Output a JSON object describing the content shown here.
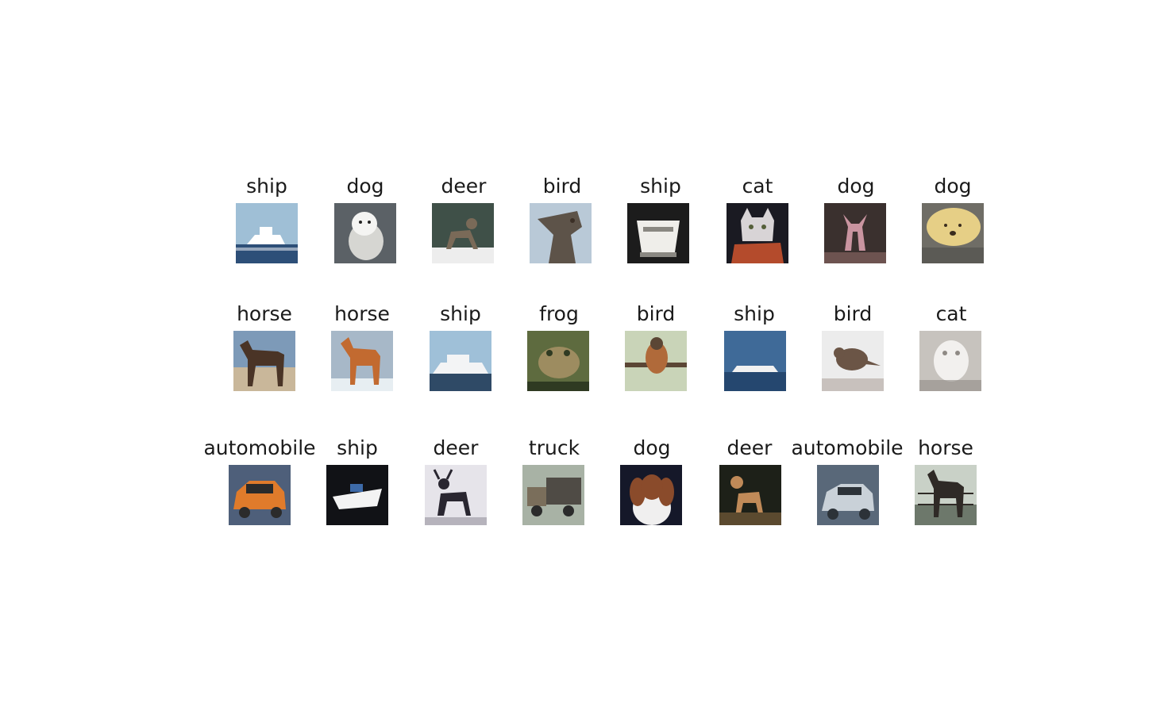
{
  "rows": [
    [
      {
        "label": "ship",
        "icon": "ship-photo",
        "palette": [
          "#9fbfd6",
          "#ffffff",
          "#2d4f78"
        ]
      },
      {
        "label": "dog",
        "icon": "dog-photo",
        "palette": [
          "#5b6166",
          "#f4f4f2",
          "#d6d6d2"
        ]
      },
      {
        "label": "deer",
        "icon": "deer-photo",
        "palette": [
          "#3f5048",
          "#7a6a58",
          "#ededed"
        ]
      },
      {
        "label": "bird",
        "icon": "bird-photo",
        "palette": [
          "#b9c9d7",
          "#5d5349",
          "#3b2f26"
        ]
      },
      {
        "label": "ship",
        "icon": "ship-photo",
        "palette": [
          "#1c1c1c",
          "#efeeea",
          "#8a8882"
        ]
      },
      {
        "label": "cat",
        "icon": "cat-photo",
        "palette": [
          "#1a1a22",
          "#d8d4d6",
          "#b44b2c"
        ]
      },
      {
        "label": "dog",
        "icon": "dog-photo",
        "palette": [
          "#3a302e",
          "#c994a0",
          "#6d5350"
        ]
      },
      {
        "label": "dog",
        "icon": "dog-photo",
        "palette": [
          "#6f6d66",
          "#e6cf86",
          "#3a2c1e"
        ]
      }
    ],
    [
      {
        "label": "horse",
        "icon": "horse-photo",
        "palette": [
          "#7d9ab8",
          "#4a3426",
          "#c9b79a"
        ]
      },
      {
        "label": "horse",
        "icon": "horse-photo",
        "palette": [
          "#a7b8c8",
          "#c26a30",
          "#e7eef2"
        ]
      },
      {
        "label": "ship",
        "icon": "ship-photo",
        "palette": [
          "#9fc0d8",
          "#f3f4f5",
          "#2f4a66"
        ]
      },
      {
        "label": "frog",
        "icon": "frog-photo",
        "palette": [
          "#5e6b3f",
          "#9d8c60",
          "#2f3a22"
        ]
      },
      {
        "label": "bird",
        "icon": "bird-photo",
        "palette": [
          "#c9d4b8",
          "#b06a3a",
          "#5b4635"
        ]
      },
      {
        "label": "ship",
        "icon": "ship-photo",
        "palette": [
          "#3f6a98",
          "#f1f1f1",
          "#25476f"
        ]
      },
      {
        "label": "bird",
        "icon": "bird-photo",
        "palette": [
          "#ececec",
          "#6b5546",
          "#c8c1bd"
        ]
      },
      {
        "label": "cat",
        "icon": "cat-photo",
        "palette": [
          "#c7c3be",
          "#f2f0ee",
          "#8f8a85"
        ]
      }
    ],
    [
      {
        "label": "automobile",
        "icon": "automobile-photo",
        "palette": [
          "#4e5f7a",
          "#e07b2b",
          "#2b2b2b"
        ]
      },
      {
        "label": "ship",
        "icon": "ship-photo",
        "palette": [
          "#111216",
          "#f3f3f3",
          "#3d6aa8"
        ]
      },
      {
        "label": "deer",
        "icon": "deer-photo",
        "palette": [
          "#e6e4ea",
          "#292630",
          "#b6b3bc"
        ]
      },
      {
        "label": "truck",
        "icon": "truck-photo",
        "palette": [
          "#a8b2a5",
          "#4f4b45",
          "#7a6e5b"
        ]
      },
      {
        "label": "dog",
        "icon": "dog-photo",
        "palette": [
          "#151829",
          "#8a4b2b",
          "#f0efef"
        ]
      },
      {
        "label": "deer",
        "icon": "deer-photo",
        "palette": [
          "#1d2018",
          "#c08a58",
          "#5b4a2f"
        ]
      },
      {
        "label": "automobile",
        "icon": "automobile-photo",
        "palette": [
          "#596879",
          "#c9d1d8",
          "#2c3238"
        ]
      },
      {
        "label": "horse",
        "icon": "horse-photo",
        "palette": [
          "#c9d1c7",
          "#2f2a26",
          "#6d786b"
        ]
      }
    ]
  ]
}
